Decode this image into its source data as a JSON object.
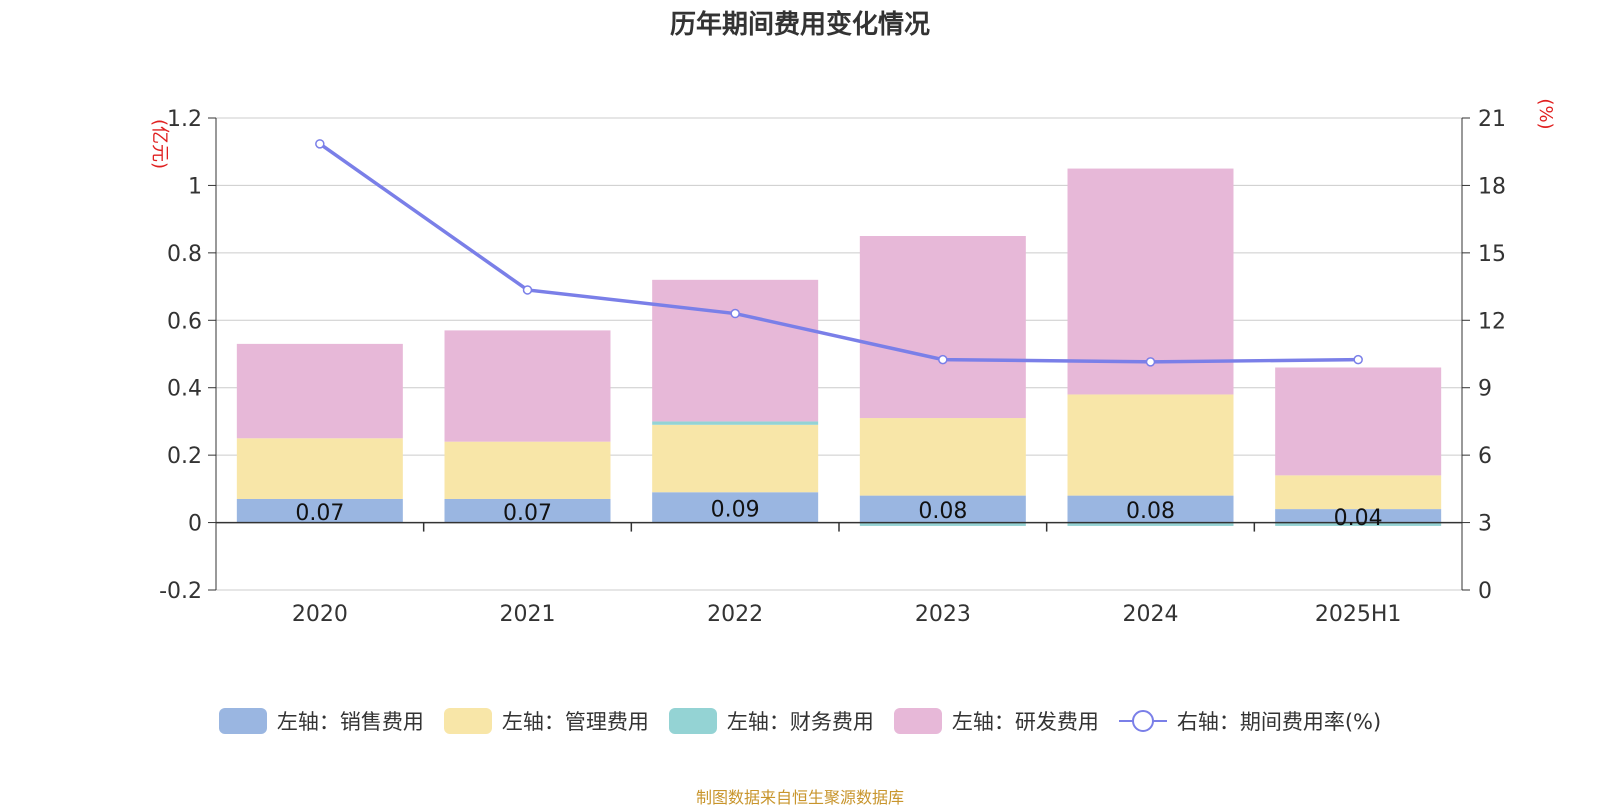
{
  "title": "历年期间费用变化情况",
  "source_note": "制图数据来自恒生聚源数据库",
  "colors": {
    "sales": "#9ab6e1",
    "admin": "#f8e6a8",
    "finance": "#94d3d4",
    "rnd": "#e7b8d8",
    "rate": "#7a7fe8",
    "axis_unit": "#e02020"
  },
  "chart_data": {
    "type": "bar",
    "stacked": true,
    "categories": [
      "2020",
      "2021",
      "2022",
      "2023",
      "2024",
      "2025H1"
    ],
    "left_axis": {
      "unit": "(亿元)",
      "ylim": [
        -0.2,
        1.2
      ],
      "ticks": [
        "-0.2",
        "0",
        "0.2",
        "0.4",
        "0.6",
        "0.8",
        "1",
        "1.2"
      ]
    },
    "right_axis": {
      "unit": "(%)",
      "ylim": [
        0,
        21
      ],
      "ticks": [
        "0",
        "3",
        "6",
        "9",
        "12",
        "15",
        "18",
        "21"
      ]
    },
    "series": [
      {
        "name": "左轴：销售费用",
        "key": "sales",
        "values": [
          0.07,
          0.07,
          0.09,
          0.08,
          0.08,
          0.04
        ]
      },
      {
        "name": "左轴：管理费用",
        "key": "admin",
        "values": [
          0.18,
          0.17,
          0.2,
          0.23,
          0.3,
          0.1
        ]
      },
      {
        "name": "左轴：财务费用",
        "key": "finance",
        "values": [
          0.0,
          0.0,
          0.01,
          -0.01,
          -0.01,
          -0.01
        ]
      },
      {
        "name": "左轴：研发费用",
        "key": "rnd",
        "values": [
          0.28,
          0.33,
          0.42,
          0.54,
          0.67,
          0.32
        ]
      }
    ],
    "line": {
      "name": "右轴：期间费用率(%)",
      "values": [
        19.85,
        13.35,
        12.3,
        10.25,
        10.15,
        10.25
      ]
    },
    "data_labels": [
      "0.07",
      "0.07",
      "0.09",
      "0.08",
      "0.08",
      "0.04"
    ],
    "grid": true,
    "legend_position": "bottom"
  }
}
